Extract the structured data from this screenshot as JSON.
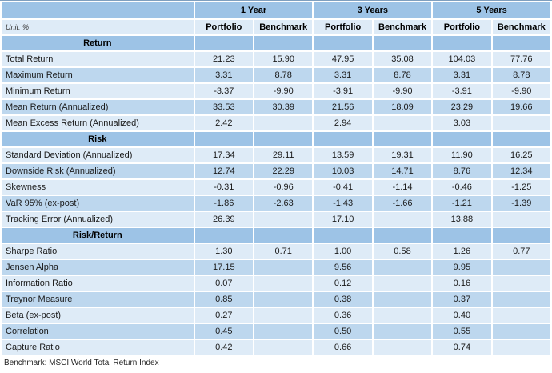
{
  "table": {
    "unit_label": "Unit: %",
    "period_headers": [
      "1 Year",
      "3 Years",
      "5 Years"
    ],
    "col_headers": [
      "Portfolio",
      "Benchmark"
    ],
    "sections": [
      {
        "title": "Return",
        "rows": [
          {
            "label": "Total Return",
            "values": [
              "21.23",
              "15.90",
              "47.95",
              "35.08",
              "104.03",
              "77.76"
            ]
          },
          {
            "label": "Maximum Return",
            "values": [
              "3.31",
              "8.78",
              "3.31",
              "8.78",
              "3.31",
              "8.78"
            ]
          },
          {
            "label": "Minimum Return",
            "values": [
              "-3.37",
              "-9.90",
              "-3.91",
              "-9.90",
              "-3.91",
              "-9.90"
            ]
          },
          {
            "label": "Mean Return (Annualized)",
            "values": [
              "33.53",
              "30.39",
              "21.56",
              "18.09",
              "23.29",
              "19.66"
            ]
          },
          {
            "label": "Mean Excess Return (Annualized)",
            "values": [
              "2.42",
              "",
              "2.94",
              "",
              "3.03",
              ""
            ]
          }
        ]
      },
      {
        "title": "Risk",
        "rows": [
          {
            "label": "Standard Deviation (Annualized)",
            "values": [
              "17.34",
              "29.11",
              "13.59",
              "19.31",
              "11.90",
              "16.25"
            ]
          },
          {
            "label": "Downside Risk (Annualized)",
            "values": [
              "12.74",
              "22.29",
              "10.03",
              "14.71",
              "8.76",
              "12.34"
            ]
          },
          {
            "label": "Skewness",
            "values": [
              "-0.31",
              "-0.96",
              "-0.41",
              "-1.14",
              "-0.46",
              "-1.25"
            ]
          },
          {
            "label": "VaR 95% (ex-post)",
            "values": [
              "-1.86",
              "-2.63",
              "-1.43",
              "-1.66",
              "-1.21",
              "-1.39"
            ]
          },
          {
            "label": "Tracking Error (Annualized)",
            "values": [
              "26.39",
              "",
              "17.10",
              "",
              "13.88",
              ""
            ]
          }
        ]
      },
      {
        "title": "Risk/Return",
        "rows": [
          {
            "label": "Sharpe Ratio",
            "values": [
              "1.30",
              "0.71",
              "1.00",
              "0.58",
              "1.26",
              "0.77"
            ]
          },
          {
            "label": "Jensen Alpha",
            "values": [
              "17.15",
              "",
              "9.56",
              "",
              "9.95",
              ""
            ]
          },
          {
            "label": "Information Ratio",
            "values": [
              "0.07",
              "",
              "0.12",
              "",
              "0.16",
              ""
            ]
          },
          {
            "label": "Treynor Measure",
            "values": [
              "0.85",
              "",
              "0.38",
              "",
              "0.37",
              ""
            ]
          },
          {
            "label": "Beta (ex-post)",
            "values": [
              "0.27",
              "",
              "0.36",
              "",
              "0.40",
              ""
            ]
          },
          {
            "label": "Correlation",
            "values": [
              "0.45",
              "",
              "0.50",
              "",
              "0.55",
              ""
            ]
          },
          {
            "label": "Capture Ratio",
            "values": [
              "0.42",
              "",
              "0.66",
              "",
              "0.74",
              ""
            ]
          }
        ]
      }
    ],
    "footnote": "Benchmark: MSCI World Total Return Index"
  },
  "colors": {
    "header_blue": "#9DC3E6",
    "band_blue": "#BDD7EE",
    "light_blue": "#DEEBF7",
    "text_dark": "#1a1a1a"
  }
}
